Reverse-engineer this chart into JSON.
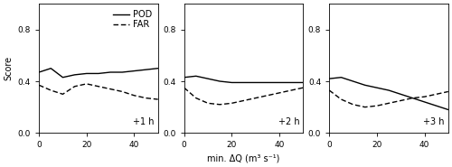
{
  "panels": [
    {
      "label": "+1 h",
      "pod": [
        0.47,
        0.5,
        0.43,
        0.45,
        0.46,
        0.46,
        0.47,
        0.47,
        0.48,
        0.49,
        0.5
      ],
      "far": [
        0.37,
        0.33,
        0.3,
        0.36,
        0.38,
        0.36,
        0.34,
        0.32,
        0.29,
        0.27,
        0.26
      ]
    },
    {
      "label": "+2 h",
      "pod": [
        0.43,
        0.44,
        0.42,
        0.4,
        0.39,
        0.39,
        0.39,
        0.39,
        0.39,
        0.39,
        0.39
      ],
      "far": [
        0.35,
        0.27,
        0.23,
        0.22,
        0.23,
        0.25,
        0.27,
        0.29,
        0.31,
        0.33,
        0.35
      ]
    },
    {
      "label": "+3 h",
      "pod": [
        0.42,
        0.43,
        0.4,
        0.37,
        0.35,
        0.33,
        0.3,
        0.27,
        0.24,
        0.21,
        0.18
      ],
      "far": [
        0.33,
        0.26,
        0.22,
        0.2,
        0.21,
        0.23,
        0.25,
        0.27,
        0.28,
        0.3,
        0.32
      ]
    }
  ],
  "x": [
    0,
    5,
    10,
    15,
    20,
    25,
    30,
    35,
    40,
    45,
    50
  ],
  "xlim": [
    0,
    50
  ],
  "ylim": [
    0.0,
    1.0
  ],
  "yticks": [
    0.0,
    0.4,
    0.8
  ],
  "xticks": [
    0,
    20,
    40
  ],
  "ylabel": "Score",
  "xlabel": "min. ΔQ (m³ s⁻¹)",
  "legend_labels": [
    "POD",
    "FAR"
  ],
  "pod_color": "#000000",
  "far_color": "#000000",
  "background_color": "#ffffff",
  "linewidth": 1.0,
  "fontsize": 7,
  "label_fontsize": 7,
  "tick_fontsize": 6.5
}
